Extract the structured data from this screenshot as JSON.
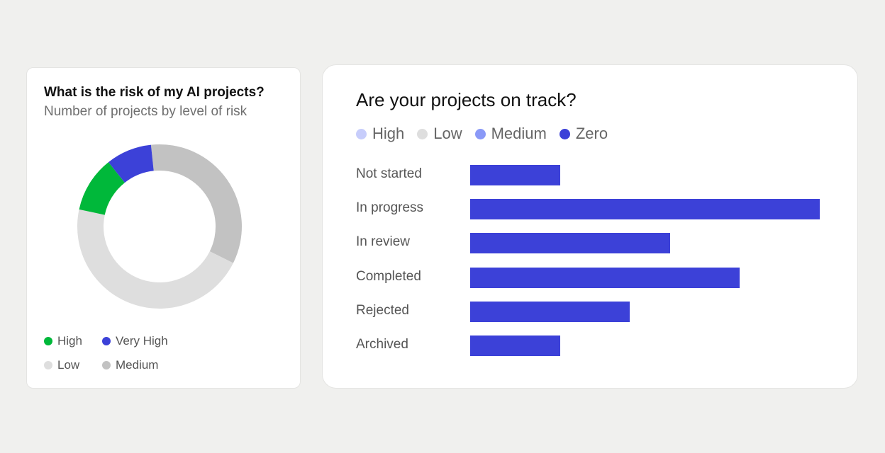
{
  "donut_card": {
    "title": "What is the risk of my AI projects?",
    "subtitle": "Number of projects by level of risk"
  },
  "bar_card": {
    "title": "Are your projects on track?"
  },
  "chart_data": [
    {
      "type": "pie",
      "variant": "donut",
      "title": "What is the risk of my AI projects?",
      "subtitle": "Number of projects by level of risk",
      "slices": [
        {
          "name": "Medium",
          "value": 34,
          "color": "#c2c2c2"
        },
        {
          "name": "Low",
          "value": 46,
          "color": "#dedede"
        },
        {
          "name": "High",
          "value": 11,
          "color": "#00b83a"
        },
        {
          "name": "Very High",
          "value": 9,
          "color": "#3c41d8"
        }
      ],
      "legend": [
        {
          "name": "High",
          "color": "#00b83a"
        },
        {
          "name": "Very High",
          "color": "#3c41d8"
        },
        {
          "name": "Low",
          "color": "#dedede"
        },
        {
          "name": "Medium",
          "color": "#c2c2c2"
        }
      ],
      "legend_position": "bottom"
    },
    {
      "type": "bar",
      "orientation": "horizontal",
      "title": "Are your projects on track?",
      "categories": [
        "Not started",
        "In progress",
        "In review",
        "Completed",
        "Rejected",
        "Archived"
      ],
      "values": [
        9,
        35,
        20,
        27,
        16,
        9
      ],
      "bar_color": "#3c41d8",
      "xlim": [
        0,
        35
      ],
      "grid": false,
      "legend": [
        {
          "name": "High",
          "color": "#c7cdfb"
        },
        {
          "name": "Low",
          "color": "#dedede"
        },
        {
          "name": "Medium",
          "color": "#8a99f7"
        },
        {
          "name": "Zero",
          "color": "#3c41d8"
        }
      ],
      "legend_position": "top"
    }
  ]
}
